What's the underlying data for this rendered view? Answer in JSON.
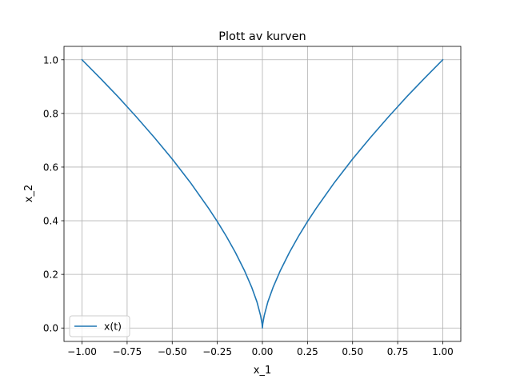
{
  "chart_data": {
    "type": "line",
    "title": "Plott av kurven",
    "xlabel": "x_1",
    "ylabel": "x_2",
    "xlim": [
      -1.1,
      1.1
    ],
    "ylim": [
      -0.05,
      1.05
    ],
    "grid": true,
    "legend_position": "lower-left",
    "x_ticks": [
      -1.0,
      -0.75,
      -0.5,
      -0.25,
      0.0,
      0.25,
      0.5,
      0.75,
      1.0
    ],
    "x_tick_labels": [
      "−1.00",
      "−0.75",
      "−0.50",
      "−0.25",
      "0.00",
      "0.25",
      "0.50",
      "0.75",
      "1.00"
    ],
    "y_ticks": [
      0.0,
      0.2,
      0.4,
      0.6,
      0.8,
      1.0
    ],
    "y_tick_labels": [
      "0.0",
      "0.2",
      "0.4",
      "0.6",
      "0.8",
      "1.0"
    ],
    "series": [
      {
        "name": "x(t)",
        "color": "#1f77b4",
        "x": [
          -1.0,
          -0.9,
          -0.8,
          -0.75,
          -0.7,
          -0.6,
          -0.5,
          -0.4,
          -0.3,
          -0.25,
          -0.2,
          -0.15,
          -0.1,
          -0.06,
          -0.03,
          -0.01,
          -0.002,
          0.0,
          0.002,
          0.01,
          0.03,
          0.06,
          0.1,
          0.15,
          0.2,
          0.25,
          0.3,
          0.4,
          0.5,
          0.6,
          0.7,
          0.75,
          0.8,
          0.9,
          1.0
        ],
        "y": [
          1.0,
          0.932,
          0.862,
          0.825,
          0.788,
          0.711,
          0.63,
          0.543,
          0.448,
          0.397,
          0.342,
          0.282,
          0.215,
          0.153,
          0.097,
          0.046,
          0.016,
          0.0,
          0.016,
          0.046,
          0.097,
          0.153,
          0.215,
          0.282,
          0.342,
          0.397,
          0.448,
          0.543,
          0.63,
          0.711,
          0.788,
          0.825,
          0.862,
          0.932,
          1.0
        ]
      }
    ]
  }
}
